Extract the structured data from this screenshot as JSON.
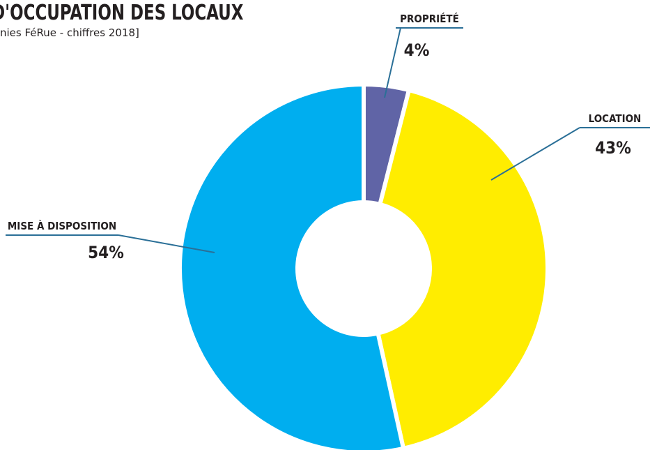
{
  "chart_data": {
    "type": "donut",
    "title": "D'OCCUPATION DES LOCAUX",
    "subtitle": "nies FéRue - chiffres 2018]",
    "categories": [
      "PROPRIÉTÉ",
      "LOCATION",
      "MISE À DISPOSITION"
    ],
    "values": [
      4,
      43,
      54
    ],
    "value_labels": [
      "4%",
      "43%",
      "54%"
    ],
    "colors": [
      "#6064a6",
      "#ffed00",
      "#00aeef"
    ]
  }
}
